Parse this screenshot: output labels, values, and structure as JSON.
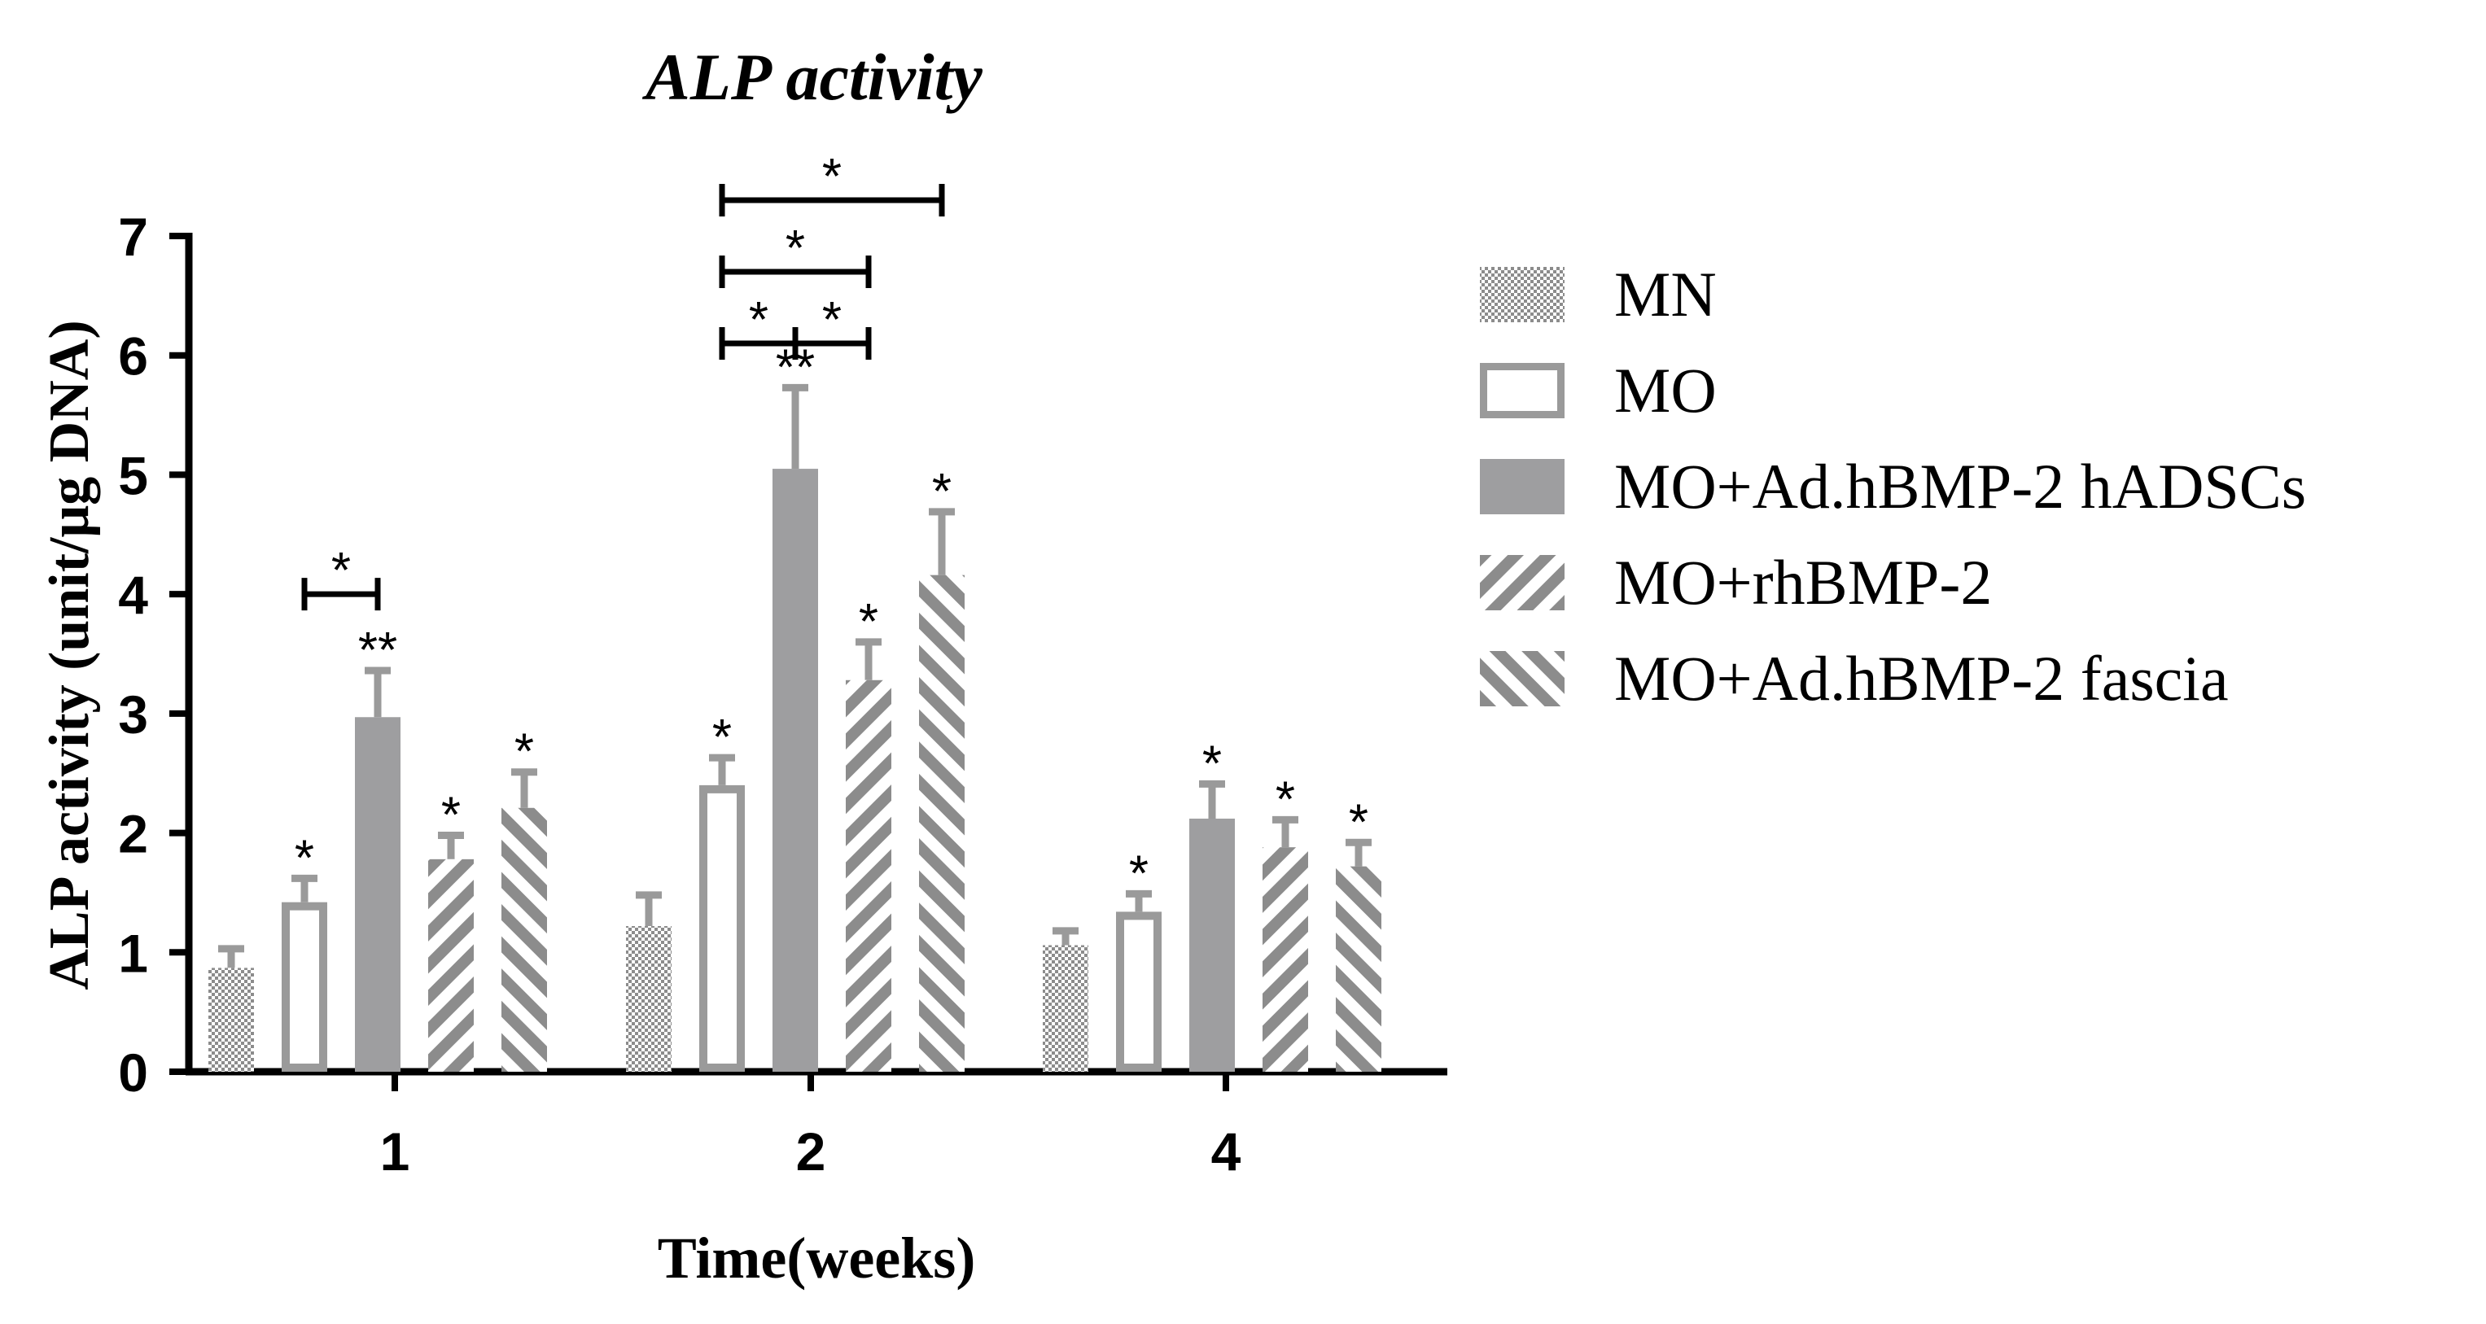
{
  "chart_data": {
    "type": "bar",
    "title": "ALP activity",
    "xlabel": "Time(weeks)",
    "ylabel": "ALP activity (unit/μg DNA)",
    "ylim": [
      0,
      7
    ],
    "yticks": [
      "0",
      "1",
      "2",
      "3",
      "4",
      "5",
      "6",
      "7"
    ],
    "categories": [
      "1",
      "2",
      "4"
    ],
    "grid": false,
    "legend_position": "right",
    "series": [
      {
        "name": "MN",
        "pattern": "checker",
        "values": [
          0.87,
          1.22,
          1.06
        ],
        "errors": [
          0.16,
          0.26,
          0.12
        ],
        "stars": [
          "",
          "",
          ""
        ]
      },
      {
        "name": "MO",
        "pattern": "hollow",
        "values": [
          1.42,
          2.4,
          1.34
        ],
        "errors": [
          0.2,
          0.23,
          0.15
        ],
        "stars": [
          "*",
          "*",
          "*"
        ]
      },
      {
        "name": "MO+Ad.hBMP-2 hADSCs",
        "pattern": "solid",
        "values": [
          2.97,
          5.05,
          2.12
        ],
        "errors": [
          0.39,
          0.68,
          0.29
        ],
        "stars": [
          "**",
          "**",
          "*"
        ]
      },
      {
        "name": "MO+rhBMP-2",
        "pattern": "hatch-back",
        "values": [
          1.78,
          3.28,
          1.88
        ],
        "errors": [
          0.2,
          0.32,
          0.23
        ],
        "stars": [
          "*",
          "*",
          "*"
        ]
      },
      {
        "name": "MO+Ad.hBMP-2 fascia",
        "pattern": "hatch-forward",
        "values": [
          2.21,
          4.16,
          1.72
        ],
        "errors": [
          0.3,
          0.53,
          0.2
        ],
        "stars": [
          "*",
          "*",
          "*"
        ]
      }
    ],
    "comparisons": [
      {
        "category": 0,
        "from": 1,
        "to": 2,
        "level": 4.0,
        "label": "*"
      },
      {
        "category": 1,
        "from": 1,
        "to": 2,
        "level": 6.1,
        "label": "*"
      },
      {
        "category": 1,
        "from": 2,
        "to": 3,
        "level": 6.1,
        "label": "*"
      },
      {
        "category": 1,
        "from": 1,
        "to": 3,
        "level": 6.7,
        "label": "*"
      },
      {
        "category": 1,
        "from": 1,
        "to": 4,
        "level": 7.3,
        "label": "*"
      }
    ],
    "colors": {
      "bar": "#8c8c8c",
      "solid": "#9e9ea0",
      "error": "#9a9a9a",
      "axis": "#000000"
    }
  }
}
